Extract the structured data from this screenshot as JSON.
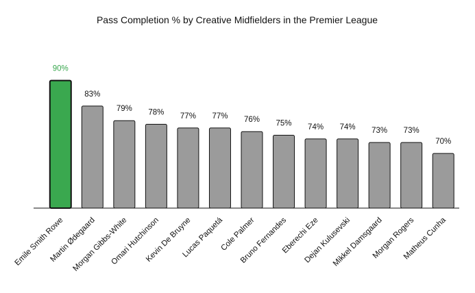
{
  "chart_data": {
    "type": "bar",
    "title": "Pass Completion % by Creative Midfielders in the Premier League",
    "xlabel": "",
    "ylabel": "",
    "categories": [
      "Emile Smith Rowe",
      "Martin Ødegaard",
      "Morgan Gibbs-White",
      "Omari Hutchinson",
      "Kevin De Bruyne",
      "Lucas Paquetá",
      "Cole Palmer",
      "Bruno Fernandes",
      "Eberechi Eze",
      "Dejan Kulusevski",
      "Mikkel Damsgaard",
      "Morgan Rogers",
      "Matheus Cunha"
    ],
    "values": [
      90,
      83,
      79,
      78,
      77,
      77,
      76,
      75,
      74,
      74,
      73,
      73,
      70
    ],
    "value_labels": [
      "90%",
      "83%",
      "79%",
      "78%",
      "77%",
      "77%",
      "76%",
      "75%",
      "74%",
      "74%",
      "73%",
      "73%",
      "70%"
    ],
    "ylim": [
      55,
      92
    ],
    "grid": false,
    "highlight_index": 0,
    "colors": {
      "highlight": "#3aa84f",
      "bar": "#9b9b9b",
      "edge": "#111111"
    }
  }
}
